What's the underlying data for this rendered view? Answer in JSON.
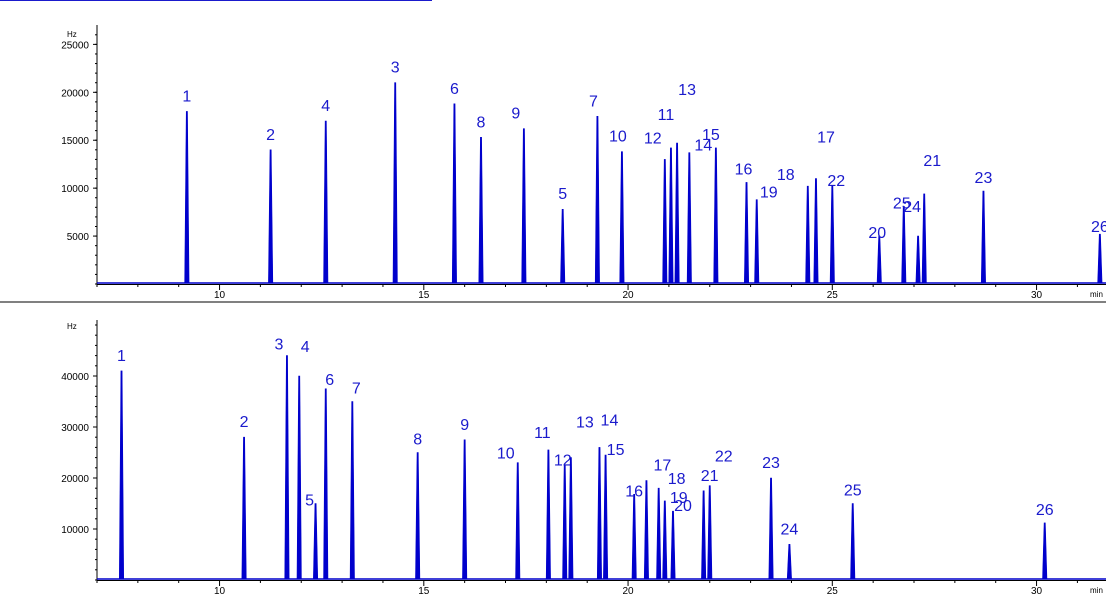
{
  "chart_data": [
    {
      "type": "line",
      "name": "top-chromatogram",
      "y_unit": "Hz",
      "x_unit": "min",
      "xlim": [
        7,
        31.7
      ],
      "ylim": [
        0,
        26500
      ],
      "x_ticks": [
        10,
        15,
        20,
        25,
        30
      ],
      "y_ticks": [
        5000,
        10000,
        15000,
        20000,
        25000
      ],
      "grid": false,
      "color": "#0000cc",
      "peaks": [
        {
          "label": "1",
          "x": 9.2,
          "y": 18000
        },
        {
          "label": "2",
          "x": 11.25,
          "y": 14000
        },
        {
          "label": "4",
          "x": 12.6,
          "y": 17000
        },
        {
          "label": "3",
          "x": 14.3,
          "y": 21000
        },
        {
          "label": "6",
          "x": 15.75,
          "y": 18800
        },
        {
          "label": "8",
          "x": 16.4,
          "y": 15300
        },
        {
          "label": "9",
          "x": 17.45,
          "y": 16200
        },
        {
          "label": "5",
          "x": 18.4,
          "y": 7800
        },
        {
          "label": "7",
          "x": 19.25,
          "y": 17500
        },
        {
          "label": "10",
          "x": 19.85,
          "y": 13800
        },
        {
          "label": "12",
          "x": 20.9,
          "y": 13000
        },
        {
          "label": "11",
          "x": 21.05,
          "y": 14200
        },
        {
          "label": "13",
          "x": 21.2,
          "y": 14700
        },
        {
          "label": "14",
          "x": 21.5,
          "y": 13700
        },
        {
          "label": "15",
          "x": 22.15,
          "y": 14200
        },
        {
          "label": "16",
          "x": 22.9,
          "y": 10600
        },
        {
          "label": "19",
          "x": 23.15,
          "y": 8800
        },
        {
          "label": "18",
          "x": 24.4,
          "y": 10200
        },
        {
          "label": "17",
          "x": 24.6,
          "y": 11000
        },
        {
          "label": "22",
          "x": 25.0,
          "y": 10200
        },
        {
          "label": "20",
          "x": 26.15,
          "y": 5000
        },
        {
          "label": "25",
          "x": 26.75,
          "y": 8100
        },
        {
          "label": "24",
          "x": 27.1,
          "y": 5000
        },
        {
          "label": "21",
          "x": 27.25,
          "y": 9400
        },
        {
          "label": "23",
          "x": 28.7,
          "y": 9700
        },
        {
          "label": "26",
          "x": 31.55,
          "y": 5200
        }
      ]
    },
    {
      "type": "line",
      "name": "bottom-chromatogram",
      "y_unit": "Hz",
      "x_unit": "min",
      "xlim": [
        7,
        31.7
      ],
      "ylim": [
        0,
        50000
      ],
      "x_ticks": [
        10,
        15,
        20,
        25,
        30
      ],
      "y_ticks": [
        10000,
        20000,
        30000,
        40000
      ],
      "grid": false,
      "color": "#0000cc",
      "peaks": [
        {
          "label": "1",
          "x": 7.6,
          "y": 41000
        },
        {
          "label": "2",
          "x": 10.6,
          "y": 28000
        },
        {
          "label": "3",
          "x": 11.65,
          "y": 44000
        },
        {
          "label": "4",
          "x": 11.95,
          "y": 40000
        },
        {
          "label": "5",
          "x": 12.35,
          "y": 15000
        },
        {
          "label": "6",
          "x": 12.6,
          "y": 37500
        },
        {
          "label": "7",
          "x": 13.25,
          "y": 35000
        },
        {
          "label": "8",
          "x": 14.85,
          "y": 25000
        },
        {
          "label": "9",
          "x": 16.0,
          "y": 27500
        },
        {
          "label": "10",
          "x": 17.3,
          "y": 23000
        },
        {
          "label": "11",
          "x": 18.05,
          "y": 25500
        },
        {
          "label": "12",
          "x": 18.45,
          "y": 22500
        },
        {
          "label": "13",
          "x": 18.6,
          "y": 24000
        },
        {
          "label": "14",
          "x": 19.3,
          "y": 26000
        },
        {
          "label": "15",
          "x": 19.45,
          "y": 24500
        },
        {
          "label": "16",
          "x": 20.15,
          "y": 16800
        },
        {
          "label": "17",
          "x": 20.45,
          "y": 19500
        },
        {
          "label": "18",
          "x": 20.75,
          "y": 18000
        },
        {
          "label": "19",
          "x": 20.9,
          "y": 15500
        },
        {
          "label": "20",
          "x": 21.1,
          "y": 13500
        },
        {
          "label": "21",
          "x": 21.85,
          "y": 17500
        },
        {
          "label": "22",
          "x": 22.0,
          "y": 18500
        },
        {
          "label": "23",
          "x": 23.5,
          "y": 20000
        },
        {
          "label": "24",
          "x": 23.95,
          "y": 7000
        },
        {
          "label": "25",
          "x": 25.5,
          "y": 15000
        },
        {
          "label": "26",
          "x": 30.2,
          "y": 11200
        }
      ]
    }
  ]
}
